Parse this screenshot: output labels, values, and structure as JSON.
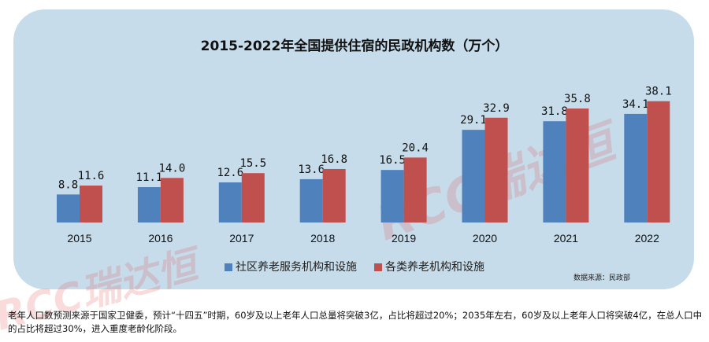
{
  "chart_data": {
    "type": "bar",
    "title": "2015-2022年全国提供住宿的民政机构数（万个）",
    "categories": [
      "2015",
      "2016",
      "2017",
      "2018",
      "2019",
      "2020",
      "2021",
      "2022"
    ],
    "series": [
      {
        "name": "社区养老服务机构和设施",
        "color": "#4f81bd",
        "values": [
          8.8,
          11.1,
          12.6,
          13.6,
          16.5,
          29.1,
          31.8,
          34.1
        ]
      },
      {
        "name": "各类养老机构和设施",
        "color": "#c0504d",
        "values": [
          11.6,
          14.0,
          15.5,
          16.8,
          20.4,
          32.9,
          35.8,
          38.1
        ]
      }
    ],
    "ylim": [
      0,
      40
    ],
    "grid": false,
    "legend": "bottom",
    "source": "数据来源：民政部"
  },
  "watermark": "RCC瑞达恒",
  "note": "老年人口数预测来源于国家卫健委，预计“十四五”时期，60岁及以上老年人口总量将突破3亿，占比将超过20%；2035年左右，60岁及以上老年人口将突破4亿，在总人口中的占比将超过30%，进入重度老龄化阶段。"
}
